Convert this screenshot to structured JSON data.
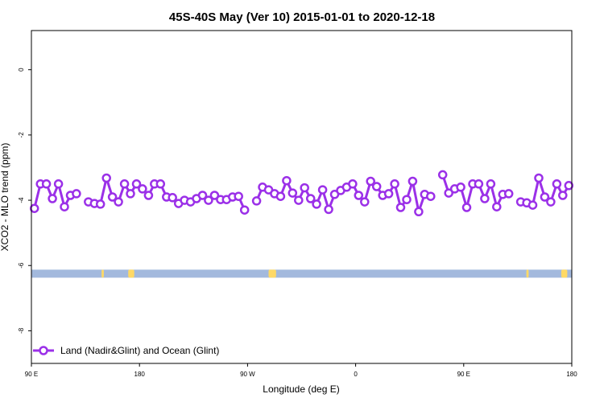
{
  "chart_data": {
    "type": "line",
    "title": "45S-40S May (Ver 10)   2015-01-01 to 2020-12-18",
    "xlabel": "Longitude (deg E)",
    "ylabel": "XCO2 - MLO trend (ppm)",
    "xlim": [
      90,
      450
    ],
    "ylim": [
      -9.0,
      1.2
    ],
    "x_ticks": [
      {
        "value": 90,
        "label": "90 E"
      },
      {
        "value": 162,
        "label": "180"
      },
      {
        "value": 234,
        "label": "90 W"
      },
      {
        "value": 306,
        "label": "0"
      },
      {
        "value": 378,
        "label": "90 E"
      },
      {
        "value": 450,
        "label": "180"
      }
    ],
    "y_ticks": [
      {
        "value": 0,
        "label": "0"
      },
      {
        "value": -2,
        "label": "-2"
      },
      {
        "value": -4,
        "label": "-4"
      },
      {
        "value": -6,
        "label": "-6"
      },
      {
        "value": -8,
        "label": "-8"
      }
    ],
    "series": [
      {
        "name": "Land (Nadir&Glint) and Ocean (Glint)",
        "color": "#9b30e8",
        "segments": [
          [
            [
              92,
              -4.25
            ],
            [
              96,
              -3.5
            ],
            [
              100,
              -3.5
            ],
            [
              104,
              -3.95
            ],
            [
              108,
              -3.5
            ],
            [
              112,
              -4.2
            ],
            [
              116,
              -3.85
            ],
            [
              120,
              -3.8
            ]
          ],
          [
            [
              128,
              -4.05
            ],
            [
              132,
              -4.1
            ],
            [
              136,
              -4.12
            ],
            [
              140,
              -3.32
            ],
            [
              144,
              -3.9
            ],
            [
              148,
              -4.05
            ],
            [
              152,
              -3.5
            ],
            [
              156,
              -3.8
            ],
            [
              160,
              -3.5
            ],
            [
              164,
              -3.65
            ],
            [
              168,
              -3.85
            ],
            [
              172,
              -3.5
            ],
            [
              176,
              -3.5
            ],
            [
              180,
              -3.9
            ],
            [
              184,
              -3.92
            ],
            [
              188,
              -4.1
            ],
            [
              192,
              -4.0
            ],
            [
              196,
              -4.05
            ],
            [
              200,
              -3.95
            ],
            [
              204,
              -3.85
            ],
            [
              208,
              -4.0
            ],
            [
              212,
              -3.85
            ],
            [
              216,
              -3.98
            ],
            [
              220,
              -3.98
            ],
            [
              224,
              -3.9
            ],
            [
              228,
              -3.88
            ],
            [
              232,
              -4.3
            ]
          ],
          [
            [
              240,
              -4.02
            ],
            [
              244,
              -3.6
            ],
            [
              248,
              -3.68
            ],
            [
              252,
              -3.8
            ],
            [
              256,
              -3.88
            ],
            [
              260,
              -3.4
            ],
            [
              264,
              -3.78
            ],
            [
              268,
              -4.0
            ],
            [
              272,
              -3.62
            ],
            [
              276,
              -3.95
            ],
            [
              280,
              -4.12
            ],
            [
              284,
              -3.68
            ],
            [
              288,
              -4.28
            ],
            [
              292,
              -3.82
            ],
            [
              296,
              -3.7
            ],
            [
              300,
              -3.6
            ],
            [
              304,
              -3.5
            ],
            [
              308,
              -3.85
            ],
            [
              312,
              -4.05
            ],
            [
              316,
              -3.42
            ],
            [
              320,
              -3.58
            ],
            [
              324,
              -3.85
            ],
            [
              328,
              -3.8
            ],
            [
              332,
              -3.5
            ],
            [
              336,
              -4.22
            ],
            [
              340,
              -3.98
            ],
            [
              344,
              -3.42
            ],
            [
              348,
              -4.35
            ],
            [
              352,
              -3.82
            ],
            [
              356,
              -3.88
            ]
          ],
          [
            [
              364,
              -3.22
            ],
            [
              368,
              -3.78
            ],
            [
              372,
              -3.65
            ],
            [
              376,
              -3.6
            ],
            [
              380,
              -4.22
            ],
            [
              384,
              -3.5
            ],
            [
              388,
              -3.5
            ],
            [
              392,
              -3.95
            ],
            [
              396,
              -3.5
            ],
            [
              400,
              -4.2
            ],
            [
              404,
              -3.82
            ],
            [
              408,
              -3.8
            ]
          ],
          [
            [
              416,
              -4.05
            ],
            [
              420,
              -4.08
            ],
            [
              424,
              -4.15
            ],
            [
              428,
              -3.32
            ],
            [
              432,
              -3.9
            ],
            [
              436,
              -4.05
            ],
            [
              440,
              -3.5
            ],
            [
              444,
              -3.85
            ],
            [
              448,
              -3.55
            ]
          ]
        ]
      }
    ],
    "surface_strip": {
      "y_value": -6.25,
      "ocean_color": "#a3b9dd",
      "land_color": "#ffd966",
      "land_blobs": [
        {
          "x": 137.5,
          "width": 1.5
        },
        {
          "x": 156.5,
          "width": 4
        },
        {
          "x": 250.5,
          "width": 5
        },
        {
          "x": 420.5,
          "width": 1.5
        },
        {
          "x": 445,
          "width": 4
        }
      ]
    },
    "legend": {
      "position": "bottom-left"
    }
  }
}
